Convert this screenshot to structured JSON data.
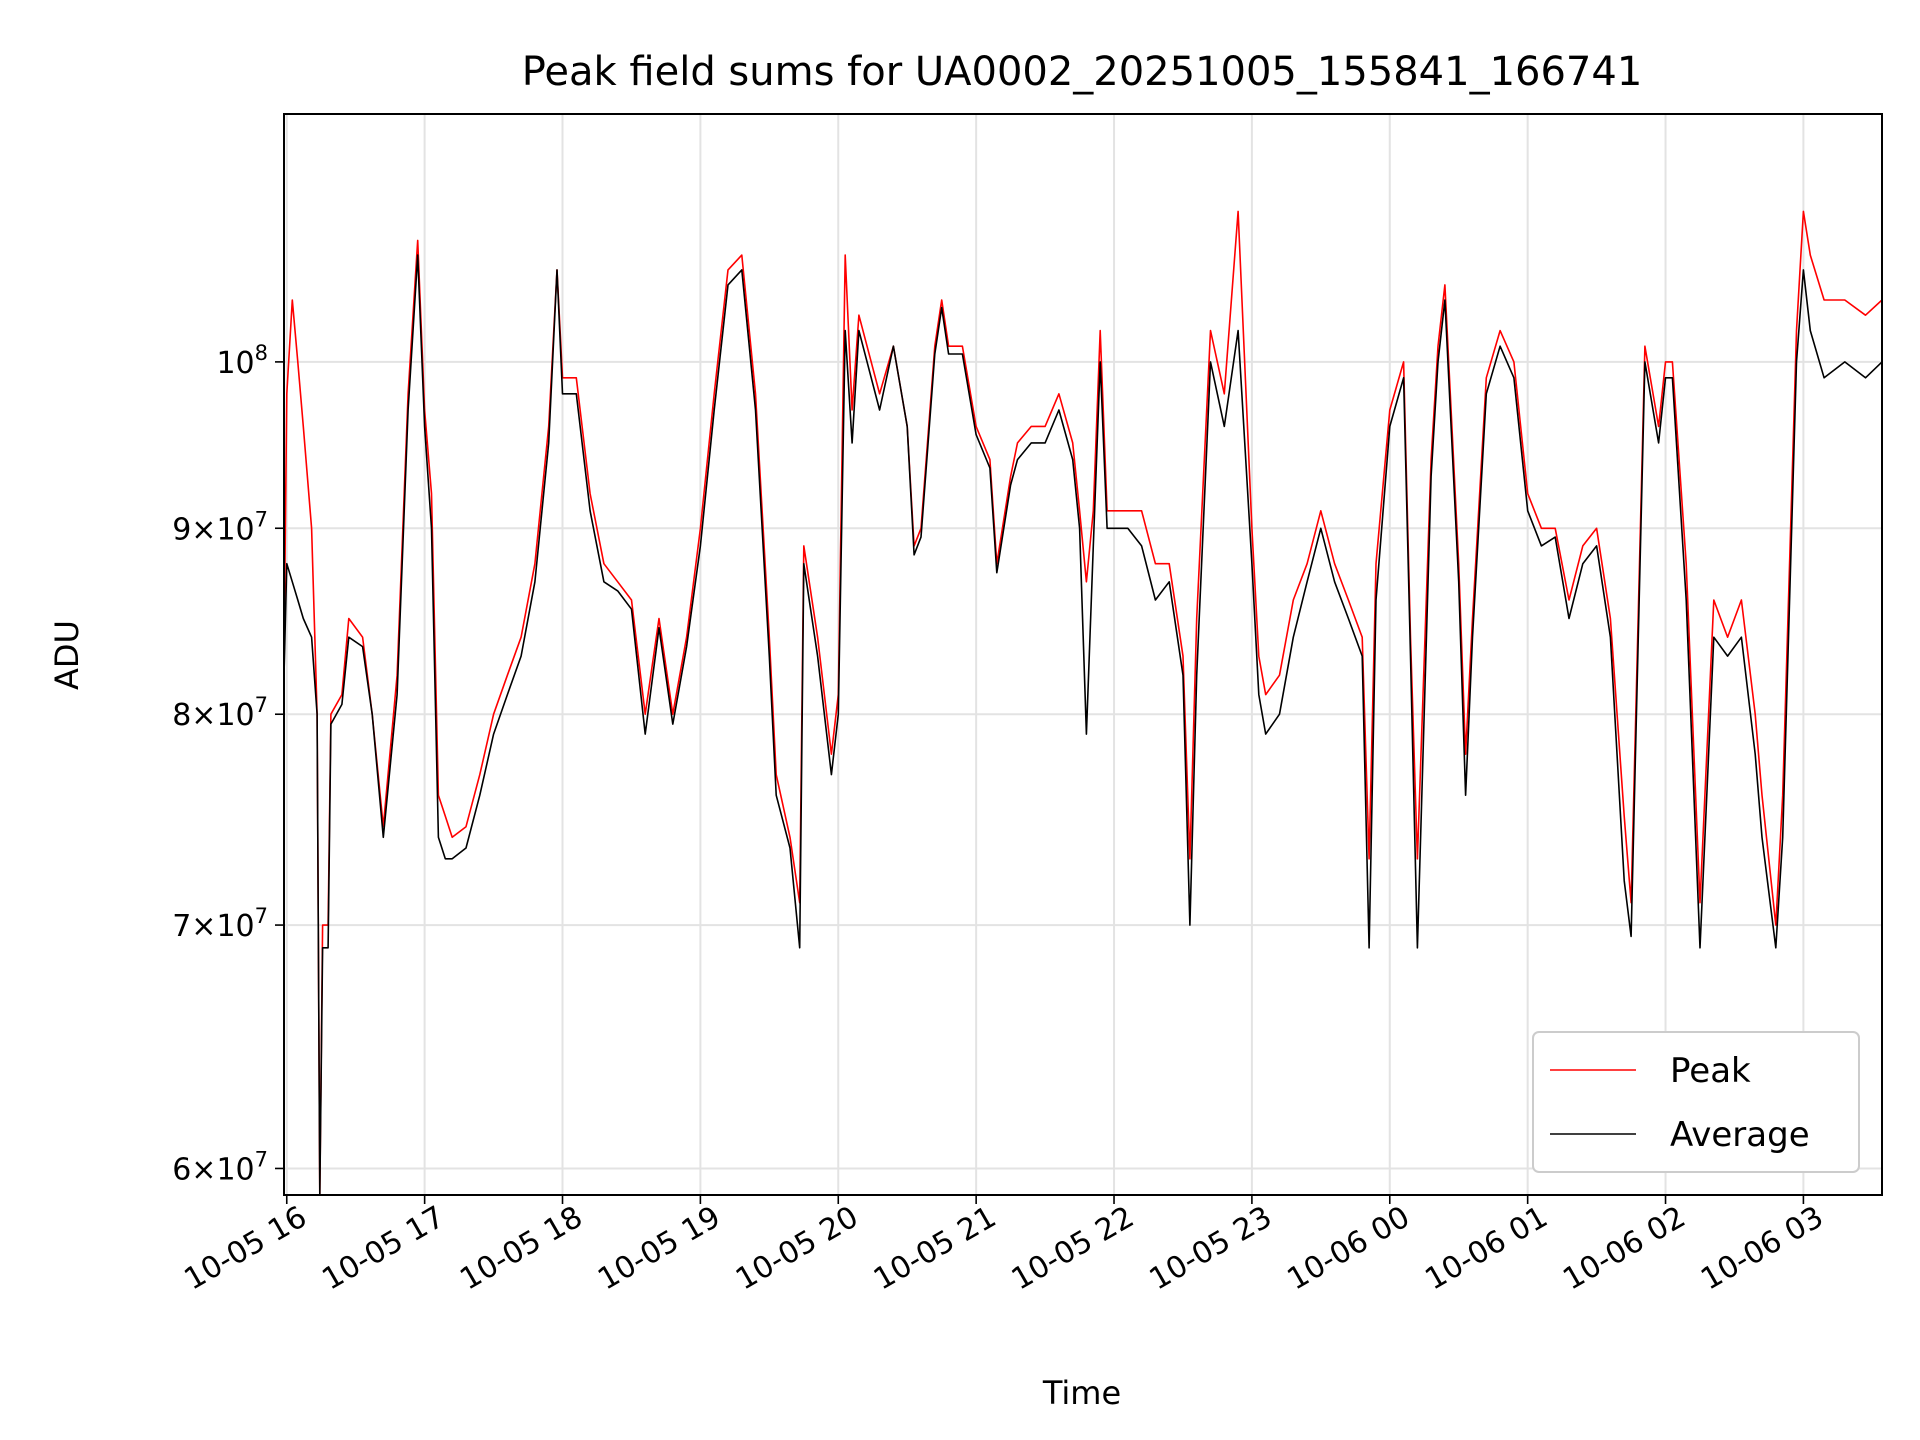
{
  "chart_data": {
    "type": "line",
    "title": "Peak field sums for UA0002_20251005_155841_166741",
    "xlabel": "Time",
    "ylabel": "ADU",
    "yscale": "log",
    "ylim": [
      59000000,
      117000000
    ],
    "xlim": [
      15.98,
      27.57
    ],
    "grid": true,
    "legend_position": "lower-right",
    "x_ticks": [
      {
        "value": 16,
        "label": "10-05 16"
      },
      {
        "value": 17,
        "label": "10-05 17"
      },
      {
        "value": 18,
        "label": "10-05 18"
      },
      {
        "value": 19,
        "label": "10-05 19"
      },
      {
        "value": 20,
        "label": "10-05 20"
      },
      {
        "value": 21,
        "label": "10-05 21"
      },
      {
        "value": 22,
        "label": "10-05 22"
      },
      {
        "value": 23,
        "label": "10-05 23"
      },
      {
        "value": 24,
        "label": "10-06 00"
      },
      {
        "value": 25,
        "label": "10-06 01"
      },
      {
        "value": 26,
        "label": "10-06 02"
      },
      {
        "value": 27,
        "label": "10-06 03"
      }
    ],
    "y_ticks": [
      {
        "value": 60000000,
        "base": "6",
        "exp": "7"
      },
      {
        "value": 70000000,
        "base": "7",
        "exp": "7"
      },
      {
        "value": 80000000,
        "base": "8",
        "exp": "7"
      },
      {
        "value": 90000000,
        "base": "9",
        "exp": "7"
      },
      {
        "value": 100000000,
        "base": "10",
        "exp": "8"
      }
    ],
    "y_tick_mult": "×",
    "series": [
      {
        "name": "Peak",
        "color": "#ff0000",
        "points": [
          [
            15.98,
            83
          ],
          [
            16.0,
            98
          ],
          [
            16.04,
            104
          ],
          [
            16.08,
            100
          ],
          [
            16.12,
            96
          ],
          [
            16.18,
            90
          ],
          [
            16.22,
            80
          ],
          [
            16.24,
            59
          ],
          [
            16.26,
            70
          ],
          [
            16.3,
            70
          ],
          [
            16.32,
            80
          ],
          [
            16.4,
            81
          ],
          [
            16.45,
            85
          ],
          [
            16.55,
            84
          ],
          [
            16.62,
            80
          ],
          [
            16.7,
            74.5
          ],
          [
            16.8,
            82
          ],
          [
            16.88,
            98
          ],
          [
            16.95,
            108
          ],
          [
            17.0,
            97
          ],
          [
            17.05,
            92
          ],
          [
            17.1,
            76
          ],
          [
            17.15,
            75
          ],
          [
            17.2,
            74
          ],
          [
            17.3,
            74.5
          ],
          [
            17.4,
            77
          ],
          [
            17.5,
            80
          ],
          [
            17.6,
            82
          ],
          [
            17.7,
            84
          ],
          [
            17.8,
            88
          ],
          [
            17.9,
            96
          ],
          [
            17.96,
            106
          ],
          [
            18.0,
            99
          ],
          [
            18.1,
            99
          ],
          [
            18.2,
            92
          ],
          [
            18.3,
            88
          ],
          [
            18.4,
            87
          ],
          [
            18.5,
            86
          ],
          [
            18.6,
            80
          ],
          [
            18.7,
            85
          ],
          [
            18.8,
            80
          ],
          [
            18.9,
            84
          ],
          [
            19.0,
            90
          ],
          [
            19.1,
            98
          ],
          [
            19.2,
            106
          ],
          [
            19.3,
            107
          ],
          [
            19.4,
            98
          ],
          [
            19.5,
            84
          ],
          [
            19.55,
            77
          ],
          [
            19.65,
            74
          ],
          [
            19.72,
            71
          ],
          [
            19.75,
            89
          ],
          [
            19.85,
            84
          ],
          [
            19.95,
            78
          ],
          [
            20.0,
            81
          ],
          [
            20.05,
            107
          ],
          [
            20.1,
            97
          ],
          [
            20.15,
            103
          ],
          [
            20.3,
            98
          ],
          [
            20.4,
            101
          ],
          [
            20.5,
            96
          ],
          [
            20.55,
            89
          ],
          [
            20.6,
            90
          ],
          [
            20.7,
            101
          ],
          [
            20.75,
            104
          ],
          [
            20.8,
            101
          ],
          [
            20.9,
            101
          ],
          [
            21.0,
            96
          ],
          [
            21.1,
            94
          ],
          [
            21.15,
            88
          ],
          [
            21.25,
            93
          ],
          [
            21.3,
            95
          ],
          [
            21.4,
            96
          ],
          [
            21.5,
            96
          ],
          [
            21.6,
            98
          ],
          [
            21.7,
            95
          ],
          [
            21.75,
            91
          ],
          [
            21.8,
            87
          ],
          [
            21.85,
            91
          ],
          [
            21.9,
            102
          ],
          [
            21.95,
            91
          ],
          [
            22.0,
            91
          ],
          [
            22.1,
            91
          ],
          [
            22.2,
            91
          ],
          [
            22.3,
            88
          ],
          [
            22.4,
            88
          ],
          [
            22.5,
            83
          ],
          [
            22.55,
            73
          ],
          [
            22.6,
            85
          ],
          [
            22.7,
            102
          ],
          [
            22.8,
            98
          ],
          [
            22.9,
            110
          ],
          [
            23.0,
            90
          ],
          [
            23.05,
            83
          ],
          [
            23.1,
            81
          ],
          [
            23.2,
            82
          ],
          [
            23.3,
            86
          ],
          [
            23.4,
            88
          ],
          [
            23.5,
            91
          ],
          [
            23.6,
            88
          ],
          [
            23.7,
            86
          ],
          [
            23.8,
            84
          ],
          [
            23.85,
            73
          ],
          [
            23.9,
            88
          ],
          [
            24.0,
            97
          ],
          [
            24.1,
            100
          ],
          [
            24.15,
            84
          ],
          [
            24.2,
            73
          ],
          [
            24.3,
            94
          ],
          [
            24.35,
            101
          ],
          [
            24.4,
            105
          ],
          [
            24.5,
            88
          ],
          [
            24.55,
            78
          ],
          [
            24.6,
            85
          ],
          [
            24.7,
            99
          ],
          [
            24.8,
            102
          ],
          [
            24.9,
            100
          ],
          [
            25.0,
            92
          ],
          [
            25.1,
            90
          ],
          [
            25.2,
            90
          ],
          [
            25.3,
            86
          ],
          [
            25.4,
            89
          ],
          [
            25.5,
            90
          ],
          [
            25.6,
            85
          ],
          [
            25.7,
            75
          ],
          [
            25.75,
            71
          ],
          [
            25.85,
            101
          ],
          [
            25.95,
            96
          ],
          [
            26.0,
            100
          ],
          [
            26.05,
            100
          ],
          [
            26.15,
            88
          ],
          [
            26.25,
            71
          ],
          [
            26.35,
            86
          ],
          [
            26.45,
            84
          ],
          [
            26.55,
            86
          ],
          [
            26.65,
            80
          ],
          [
            26.7,
            76
          ],
          [
            26.8,
            70
          ],
          [
            26.85,
            76
          ],
          [
            26.95,
            102
          ],
          [
            27.0,
            110
          ],
          [
            27.05,
            107
          ],
          [
            27.15,
            104
          ],
          [
            27.3,
            104
          ],
          [
            27.45,
            103
          ],
          [
            27.57,
            104
          ]
        ]
      },
      {
        "name": "Average",
        "color": "#000000",
        "points": [
          [
            15.98,
            82
          ],
          [
            16.0,
            88
          ],
          [
            16.04,
            87
          ],
          [
            16.08,
            86
          ],
          [
            16.12,
            85
          ],
          [
            16.18,
            84
          ],
          [
            16.22,
            80
          ],
          [
            16.24,
            59
          ],
          [
            16.26,
            69
          ],
          [
            16.3,
            69
          ],
          [
            16.32,
            79.5
          ],
          [
            16.4,
            80.5
          ],
          [
            16.45,
            84
          ],
          [
            16.55,
            83.5
          ],
          [
            16.62,
            80
          ],
          [
            16.7,
            74
          ],
          [
            16.8,
            81
          ],
          [
            16.88,
            97
          ],
          [
            16.95,
            107
          ],
          [
            17.0,
            96
          ],
          [
            17.05,
            90
          ],
          [
            17.1,
            74
          ],
          [
            17.15,
            73
          ],
          [
            17.2,
            73
          ],
          [
            17.3,
            73.5
          ],
          [
            17.4,
            76
          ],
          [
            17.5,
            79
          ],
          [
            17.6,
            81
          ],
          [
            17.7,
            83
          ],
          [
            17.8,
            87
          ],
          [
            17.9,
            95
          ],
          [
            17.96,
            106
          ],
          [
            18.0,
            98
          ],
          [
            18.1,
            98
          ],
          [
            18.2,
            91
          ],
          [
            18.3,
            87
          ],
          [
            18.4,
            86.5
          ],
          [
            18.5,
            85.5
          ],
          [
            18.6,
            79
          ],
          [
            18.7,
            84.5
          ],
          [
            18.8,
            79.5
          ],
          [
            18.9,
            83.5
          ],
          [
            19.0,
            89
          ],
          [
            19.1,
            97
          ],
          [
            19.2,
            105
          ],
          [
            19.3,
            106
          ],
          [
            19.4,
            97
          ],
          [
            19.5,
            83
          ],
          [
            19.55,
            76
          ],
          [
            19.65,
            73.5
          ],
          [
            19.72,
            69
          ],
          [
            19.75,
            88
          ],
          [
            19.85,
            83
          ],
          [
            19.95,
            77
          ],
          [
            20.0,
            80
          ],
          [
            20.05,
            102
          ],
          [
            20.1,
            95
          ],
          [
            20.15,
            102
          ],
          [
            20.3,
            97
          ],
          [
            20.4,
            101
          ],
          [
            20.5,
            96
          ],
          [
            20.55,
            88.5
          ],
          [
            20.6,
            89.5
          ],
          [
            20.7,
            100.5
          ],
          [
            20.75,
            103.5
          ],
          [
            20.8,
            100.5
          ],
          [
            20.9,
            100.5
          ],
          [
            21.0,
            95.5
          ],
          [
            21.1,
            93.5
          ],
          [
            21.15,
            87.5
          ],
          [
            21.25,
            92.5
          ],
          [
            21.3,
            94
          ],
          [
            21.4,
            95
          ],
          [
            21.5,
            95
          ],
          [
            21.6,
            97
          ],
          [
            21.7,
            94
          ],
          [
            21.75,
            90
          ],
          [
            21.8,
            79
          ],
          [
            21.85,
            89
          ],
          [
            21.9,
            100
          ],
          [
            21.95,
            90
          ],
          [
            22.0,
            90
          ],
          [
            22.1,
            90
          ],
          [
            22.2,
            89
          ],
          [
            22.3,
            86
          ],
          [
            22.4,
            87
          ],
          [
            22.5,
            82
          ],
          [
            22.55,
            70
          ],
          [
            22.6,
            82
          ],
          [
            22.7,
            100
          ],
          [
            22.8,
            96
          ],
          [
            22.9,
            102
          ],
          [
            23.0,
            88
          ],
          [
            23.05,
            81
          ],
          [
            23.1,
            79
          ],
          [
            23.2,
            80
          ],
          [
            23.3,
            84
          ],
          [
            23.4,
            87
          ],
          [
            23.5,
            90
          ],
          [
            23.6,
            87
          ],
          [
            23.7,
            85
          ],
          [
            23.8,
            83
          ],
          [
            23.85,
            69
          ],
          [
            23.9,
            86
          ],
          [
            24.0,
            96
          ],
          [
            24.1,
            99
          ],
          [
            24.15,
            83
          ],
          [
            24.2,
            69
          ],
          [
            24.3,
            93
          ],
          [
            24.35,
            100
          ],
          [
            24.4,
            104
          ],
          [
            24.5,
            87
          ],
          [
            24.55,
            76
          ],
          [
            24.6,
            84
          ],
          [
            24.7,
            98
          ],
          [
            24.8,
            101
          ],
          [
            24.9,
            99
          ],
          [
            25.0,
            91
          ],
          [
            25.1,
            89
          ],
          [
            25.2,
            89.5
          ],
          [
            25.3,
            85
          ],
          [
            25.4,
            88
          ],
          [
            25.5,
            89
          ],
          [
            25.6,
            84
          ],
          [
            25.7,
            72
          ],
          [
            25.75,
            69.5
          ],
          [
            25.85,
            100
          ],
          [
            25.95,
            95
          ],
          [
            26.0,
            99
          ],
          [
            26.05,
            99
          ],
          [
            26.15,
            86
          ],
          [
            26.25,
            69
          ],
          [
            26.35,
            84
          ],
          [
            26.45,
            83
          ],
          [
            26.55,
            84
          ],
          [
            26.65,
            78
          ],
          [
            26.7,
            74
          ],
          [
            26.8,
            69
          ],
          [
            26.85,
            74
          ],
          [
            26.95,
            100
          ],
          [
            27.0,
            106
          ],
          [
            27.05,
            102
          ],
          [
            27.15,
            99
          ],
          [
            27.3,
            100
          ],
          [
            27.45,
            99
          ],
          [
            27.57,
            100
          ]
        ]
      }
    ]
  }
}
